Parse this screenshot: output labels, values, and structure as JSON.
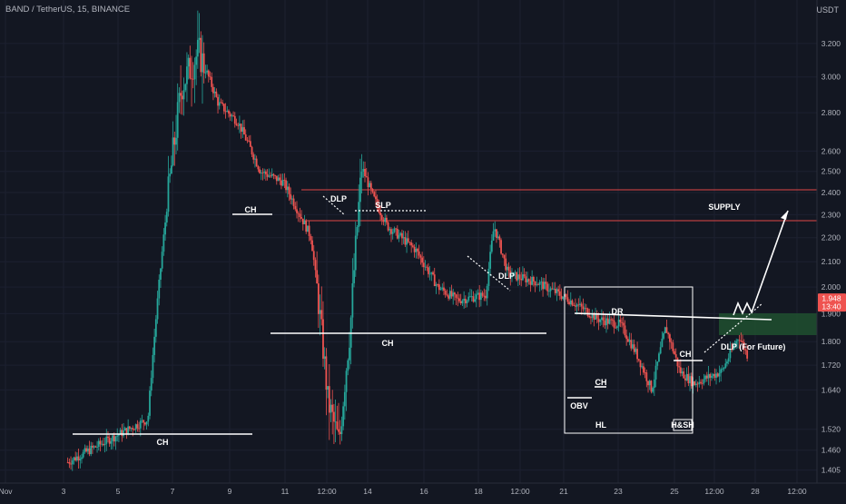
{
  "header": {
    "symbol_title": "BAND / TetherUS, 15, BINANCE",
    "currency": "USDT"
  },
  "colors": {
    "background": "#131722",
    "grid": "#1c2030",
    "candle_up": "#26a69a",
    "candle_down": "#ef5350",
    "annotation": "#ffffff",
    "supply_line": "#e04747",
    "demand_zone": "#1f4d2f",
    "price_badge": "#ef5350"
  },
  "chart_data": {
    "type": "candlestick",
    "title": "BAND / TetherUS, 15, BINANCE",
    "y_scale": "log",
    "ylim": [
      1.37,
      3.48
    ],
    "y_ticks": [
      "3.200",
      "3.000",
      "2.800",
      "2.600",
      "2.500",
      "2.400",
      "2.300",
      "2.200",
      "2.100",
      "2.000",
      "1.900",
      "1.800",
      "1.720",
      "1.640",
      "1.520",
      "1.460",
      "1.405"
    ],
    "x_ticks": [
      "Nov",
      "3",
      "5",
      "7",
      "9",
      "11",
      "12:00",
      "14",
      "16",
      "18",
      "12:00",
      "21",
      "23",
      "25",
      "12:00",
      "28",
      "12:00"
    ],
    "last_price": "1.948",
    "countdown": "13:40",
    "price_path": [
      [
        0,
        1.42
      ],
      [
        3,
        1.55
      ],
      [
        4.2,
        2.95
      ],
      [
        4.8,
        3.15
      ],
      [
        5.5,
        2.85
      ],
      [
        6.2,
        2.75
      ],
      [
        7,
        2.5
      ],
      [
        7.8,
        2.45
      ],
      [
        8.8,
        2.2
      ],
      [
        9.4,
        1.6
      ],
      [
        9.8,
        1.48
      ],
      [
        10.2,
        1.86
      ],
      [
        10.6,
        2.52
      ],
      [
        11.0,
        2.38
      ],
      [
        11.5,
        2.25
      ],
      [
        12.5,
        2.15
      ],
      [
        13.3,
        2.0
      ],
      [
        14.0,
        1.95
      ],
      [
        15.0,
        1.97
      ],
      [
        15.3,
        2.25
      ],
      [
        15.8,
        2.05
      ],
      [
        16.8,
        2.02
      ],
      [
        18.0,
        1.95
      ],
      [
        19.0,
        1.88
      ],
      [
        19.8,
        1.86
      ],
      [
        20.4,
        1.75
      ],
      [
        20.9,
        1.64
      ],
      [
        21.4,
        1.85
      ],
      [
        21.9,
        1.7
      ],
      [
        22.4,
        1.66
      ],
      [
        23.4,
        1.7
      ],
      [
        24.0,
        1.82
      ],
      [
        24.5,
        1.71
      ],
      [
        24.9,
        1.66
      ],
      [
        25.2,
        1.72
      ],
      [
        25.8,
        1.82
      ],
      [
        26.4,
        1.9
      ],
      [
        26.8,
        1.948
      ]
    ],
    "annotations": [
      {
        "text": "CH"
      },
      {
        "text": "CH"
      },
      {
        "text": "CH"
      },
      {
        "text": "DLP"
      },
      {
        "text": "SLP"
      },
      {
        "text": "DLP"
      },
      {
        "text": "SUPPLY"
      },
      {
        "text": "DR"
      },
      {
        "text": "OBV"
      },
      {
        "text": "CH"
      },
      {
        "text": "HL"
      },
      {
        "text": "H&SH"
      },
      {
        "text": "CH"
      },
      {
        "text": "DLP (For Future)"
      }
    ]
  }
}
